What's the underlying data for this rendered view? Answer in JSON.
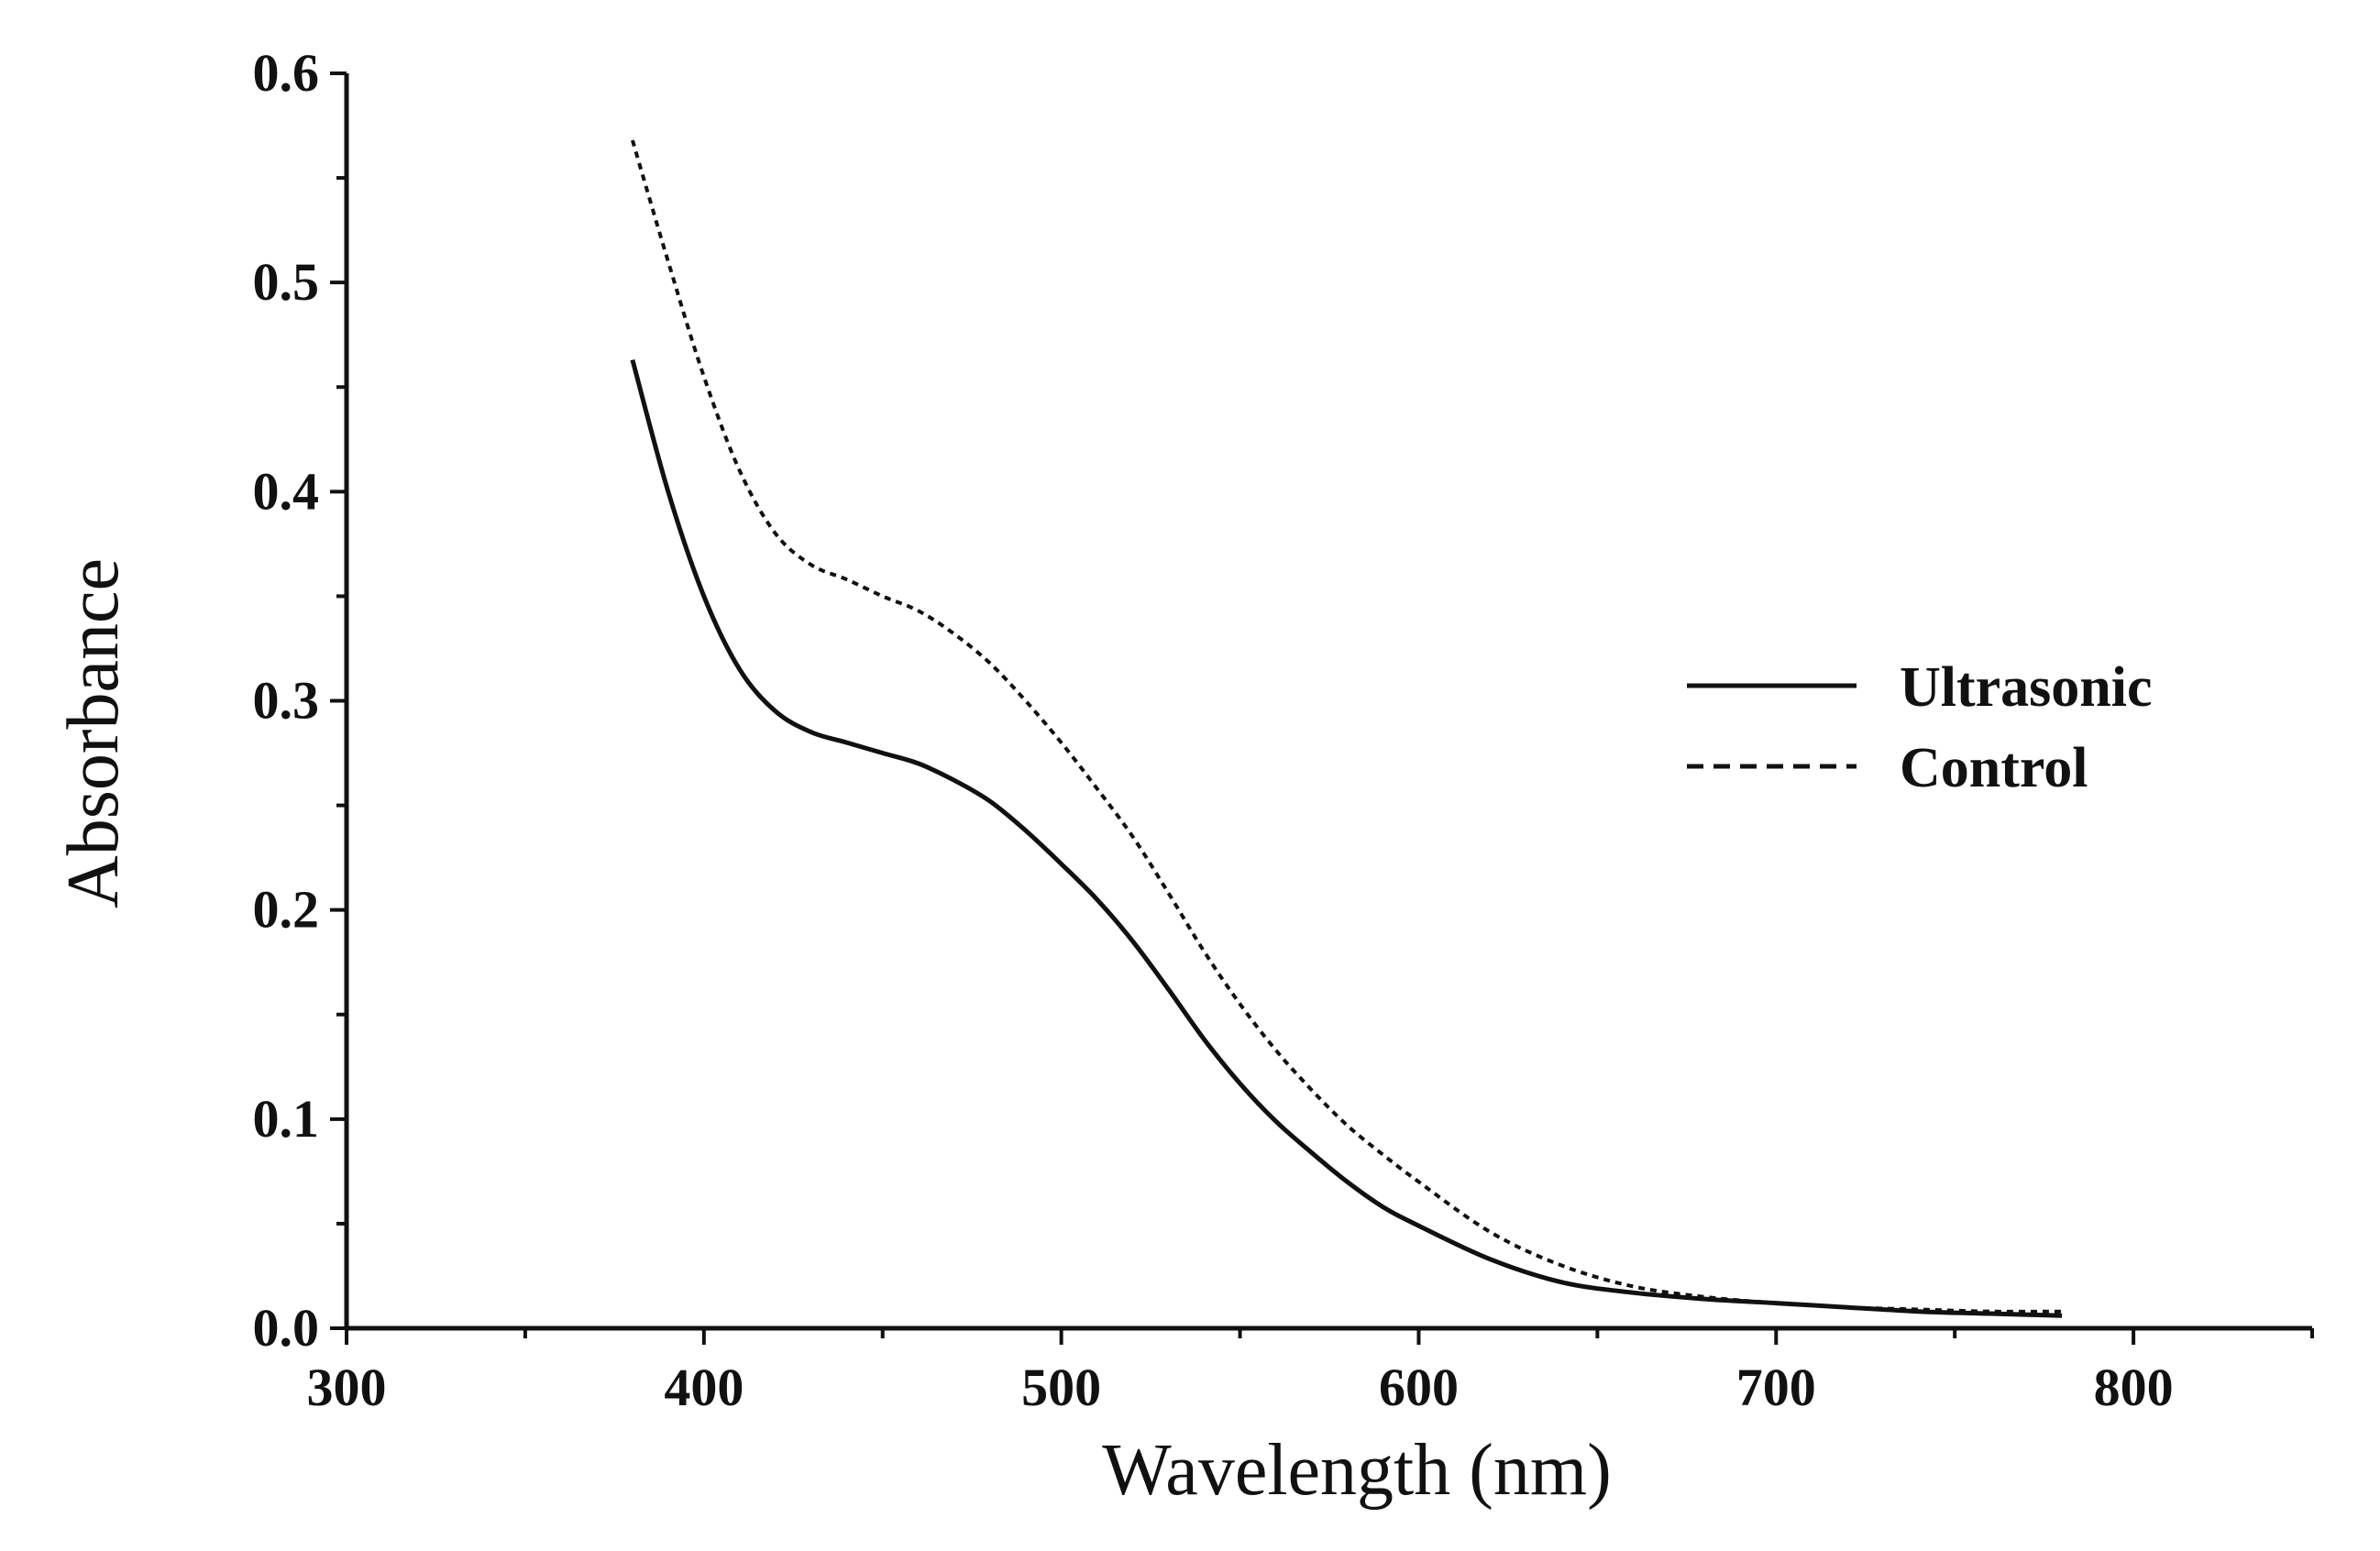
{
  "chart_data": {
    "type": "line",
    "title": "",
    "xlabel": "Wavelength (nm)",
    "ylabel": "Absorbance",
    "xlim": [
      300,
      850
    ],
    "ylim": [
      0,
      0.6
    ],
    "x_ticks": [
      300,
      400,
      500,
      600,
      700,
      800
    ],
    "x_tick_labels": [
      "300",
      "400",
      "500",
      "600",
      "700",
      "800"
    ],
    "y_ticks": [
      0.0,
      0.1,
      0.2,
      0.3,
      0.4,
      0.5,
      0.6
    ],
    "y_tick_labels": [
      "0.0",
      "0.1",
      "0.2",
      "0.3",
      "0.4",
      "0.5",
      "0.6"
    ],
    "grid": false,
    "legend_position": "center-right",
    "series": [
      {
        "name": "Ultrasonic",
        "style": "solid",
        "color": "#111111",
        "x": [
          380,
          390,
          400,
          410,
          420,
          430,
          440,
          450,
          460,
          470,
          480,
          490,
          500,
          510,
          520,
          530,
          540,
          550,
          560,
          570,
          580,
          590,
          600,
          620,
          640,
          660,
          680,
          700,
          720,
          740,
          760,
          780
        ],
        "y": [
          0.463,
          0.4,
          0.35,
          0.315,
          0.295,
          0.285,
          0.28,
          0.275,
          0.27,
          0.262,
          0.252,
          0.238,
          0.222,
          0.205,
          0.185,
          0.162,
          0.138,
          0.117,
          0.099,
          0.084,
          0.07,
          0.058,
          0.049,
          0.033,
          0.022,
          0.017,
          0.014,
          0.012,
          0.01,
          0.008,
          0.007,
          0.006
        ]
      },
      {
        "name": "Control",
        "style": "dashed",
        "color": "#111111",
        "x": [
          380,
          390,
          400,
          410,
          420,
          430,
          440,
          450,
          460,
          470,
          480,
          490,
          500,
          510,
          520,
          530,
          540,
          550,
          560,
          570,
          580,
          590,
          600,
          620,
          640,
          660,
          680,
          700,
          720,
          740,
          760,
          780
        ],
        "y": [
          0.568,
          0.51,
          0.455,
          0.41,
          0.38,
          0.365,
          0.358,
          0.35,
          0.343,
          0.332,
          0.318,
          0.3,
          0.28,
          0.258,
          0.235,
          0.208,
          0.18,
          0.155,
          0.133,
          0.114,
          0.097,
          0.083,
          0.07,
          0.046,
          0.03,
          0.02,
          0.015,
          0.012,
          0.01,
          0.009,
          0.008,
          0.008
        ]
      }
    ]
  }
}
